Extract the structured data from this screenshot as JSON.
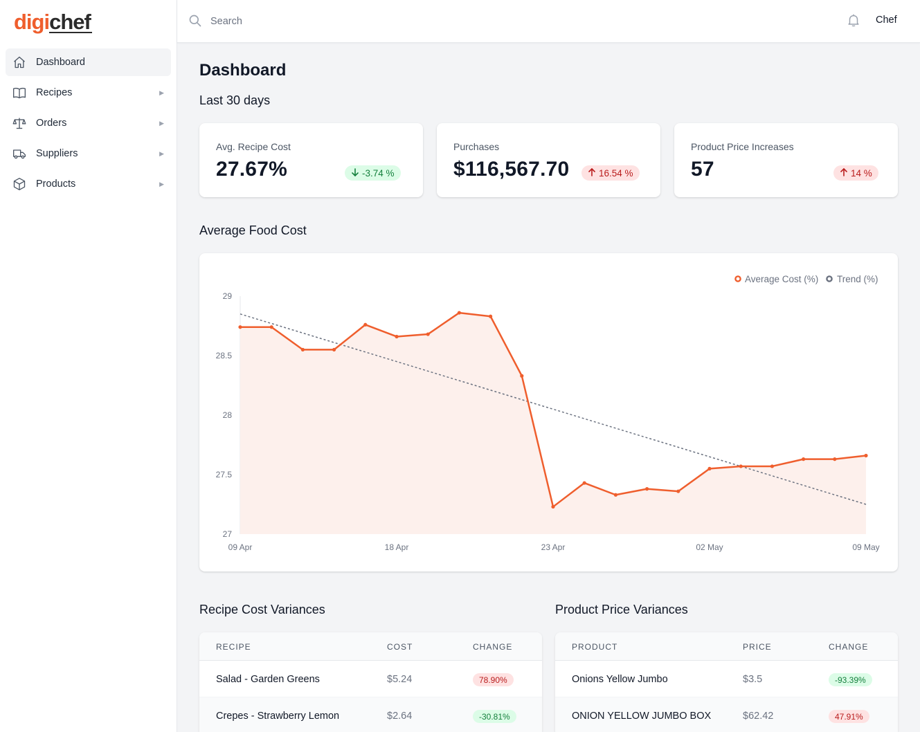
{
  "app": {
    "logo_part1": "digi",
    "logo_part2": "chef"
  },
  "sidebar": {
    "items": [
      {
        "label": "Dashboard",
        "icon": "home-icon",
        "active": true
      },
      {
        "label": "Recipes",
        "icon": "book-icon"
      },
      {
        "label": "Orders",
        "icon": "scale-icon"
      },
      {
        "label": "Suppliers",
        "icon": "truck-icon"
      },
      {
        "label": "Products",
        "icon": "cube-icon"
      }
    ]
  },
  "topbar": {
    "search_placeholder": "Search",
    "user": "Chef"
  },
  "page": {
    "title": "Dashboard",
    "period": "Last 30 days"
  },
  "stats": [
    {
      "label": "Avg. Recipe Cost",
      "value": "27.67%",
      "change": "-3.74 %",
      "direction": "down"
    },
    {
      "label": "Purchases",
      "value": "$116,567.70",
      "change": "16.54 %",
      "direction": "up"
    },
    {
      "label": "Product Price Increases",
      "value": "57",
      "change": "14 %",
      "direction": "up"
    }
  ],
  "chart_section": {
    "title": "Average Food Cost"
  },
  "chart_data": {
    "type": "line",
    "title": "",
    "x_tick_labels": [
      "09 Apr",
      "18 Apr",
      "23 Apr",
      "02 May",
      "09 May"
    ],
    "y_ticks": [
      27,
      27.5,
      28,
      28.5,
      29
    ],
    "ylim": [
      27,
      29
    ],
    "legend_position": "top-right",
    "series": [
      {
        "name": "Average Cost (%)",
        "color": "#ef5e2d",
        "fill": true,
        "values": [
          28.74,
          28.74,
          28.55,
          28.55,
          28.76,
          28.66,
          28.68,
          28.86,
          28.83,
          28.33,
          27.23,
          27.43,
          27.33,
          27.38,
          27.36,
          27.55,
          27.57,
          27.57,
          27.63,
          27.63,
          27.66
        ]
      },
      {
        "name": "Trend (%)",
        "color": "#6b7280",
        "dashed": true,
        "values": [
          28.85,
          27.25
        ]
      }
    ]
  },
  "recipe_variances": {
    "title": "Recipe Cost Variances",
    "headers": [
      "RECIPE",
      "COST",
      "CHANGE"
    ],
    "rows": [
      {
        "name": "Salad - Garden Greens",
        "value": "$5.24",
        "change": "78.90%",
        "direction": "up"
      },
      {
        "name": "Crepes - Strawberry Lemon",
        "value": "$2.64",
        "change": "-30.81%",
        "direction": "down"
      }
    ]
  },
  "product_variances": {
    "title": "Product Price Variances",
    "headers": [
      "PRODUCT",
      "PRICE",
      "CHANGE"
    ],
    "rows": [
      {
        "name": "Onions Yellow Jumbo",
        "value": "$3.5",
        "change": "-93.39%",
        "direction": "down"
      },
      {
        "name": "ONION YELLOW JUMBO BOX",
        "value": "$62.42",
        "change": "47.91%",
        "direction": "up"
      }
    ]
  }
}
